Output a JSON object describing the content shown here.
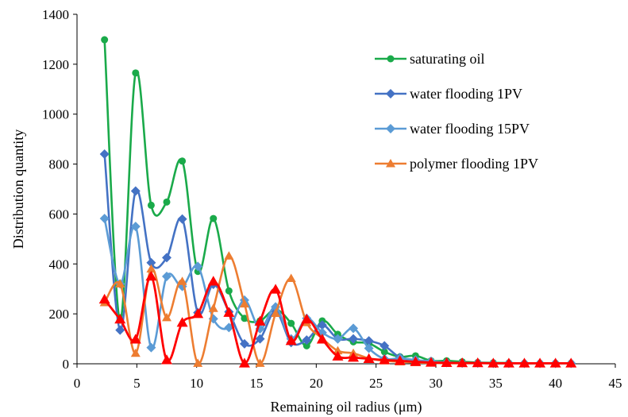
{
  "chart_data": {
    "type": "line",
    "xlabel": "Remaining oil radius (μm)",
    "ylabel": "Distribution quantity",
    "xlim": [
      0,
      45
    ],
    "ylim": [
      0,
      1400
    ],
    "xticks": [
      "0",
      "5",
      "10",
      "15",
      "20",
      "25",
      "30",
      "35",
      "40",
      "45"
    ],
    "yticks": [
      "0",
      "200",
      "400",
      "600",
      "800",
      "1000",
      "1200",
      "1400"
    ],
    "grid": false,
    "legend_position": "top-right",
    "legend_entries": [
      "saturating oil",
      "water flooding 1PV",
      "water flooding 15PV",
      "polymer flooding 1PV"
    ],
    "x": [
      2.3,
      3.6,
      4.9,
      6.2,
      7.5,
      8.8,
      10.1,
      11.4,
      12.7,
      14.0,
      15.3,
      16.6,
      17.9,
      19.2,
      20.5,
      21.8,
      23.1,
      24.4,
      25.7,
      27.0,
      28.3,
      29.6,
      30.9,
      32.2,
      33.5,
      34.8,
      36.1,
      37.4,
      38.7,
      40.0,
      41.3
    ],
    "series": [
      {
        "name": "saturating oil",
        "color": "#1aaa4a",
        "marker": "circle",
        "values": [
          1298,
          175,
          1165,
          635,
          648,
          812,
          370,
          582,
          292,
          182,
          172,
          218,
          162,
          72,
          172,
          118,
          88,
          82,
          48,
          28,
          32,
          12,
          12,
          8,
          5,
          4,
          3,
          2,
          2,
          2,
          2
        ]
      },
      {
        "name": "water flooding 1PV",
        "color": "#4472c4",
        "marker": "diamond",
        "values": [
          840,
          135,
          692,
          405,
          425,
          580,
          205,
          318,
          208,
          80,
          100,
          210,
          85,
          95,
          155,
          100,
          100,
          92,
          72,
          25,
          15,
          8,
          5,
          3,
          3,
          2,
          2,
          2,
          2,
          2,
          2
        ]
      },
      {
        "name": "water flooding 15PV",
        "color": "#5b9bd5",
        "marker": "diamond",
        "values": [
          582,
          320,
          550,
          65,
          350,
          310,
          390,
          180,
          145,
          255,
          140,
          228,
          100,
          182,
          125,
          100,
          142,
          62,
          20,
          22,
          15,
          10,
          5,
          3,
          3,
          2,
          2,
          2,
          2,
          2,
          2
        ]
      },
      {
        "name": "polymer flooding 1PV",
        "color": "#ed7d31",
        "marker": "triangle",
        "values": [
          245,
          320,
          42,
          380,
          185,
          330,
          2,
          222,
          432,
          240,
          2,
          202,
          342,
          165,
          102,
          52,
          42,
          22,
          12,
          8,
          5,
          3,
          2,
          2,
          2,
          2,
          2,
          2,
          2,
          2,
          2
        ]
      },
      {
        "color": "#ff0000",
        "marker": "triangle",
        "values": [
          258,
          178,
          98,
          350,
          15,
          165,
          200,
          330,
          205,
          2,
          170,
          298,
          92,
          178,
          98,
          30,
          25,
          20,
          15,
          12,
          8,
          5,
          4,
          3,
          3,
          2,
          2,
          2,
          2,
          2,
          2
        ]
      }
    ]
  }
}
